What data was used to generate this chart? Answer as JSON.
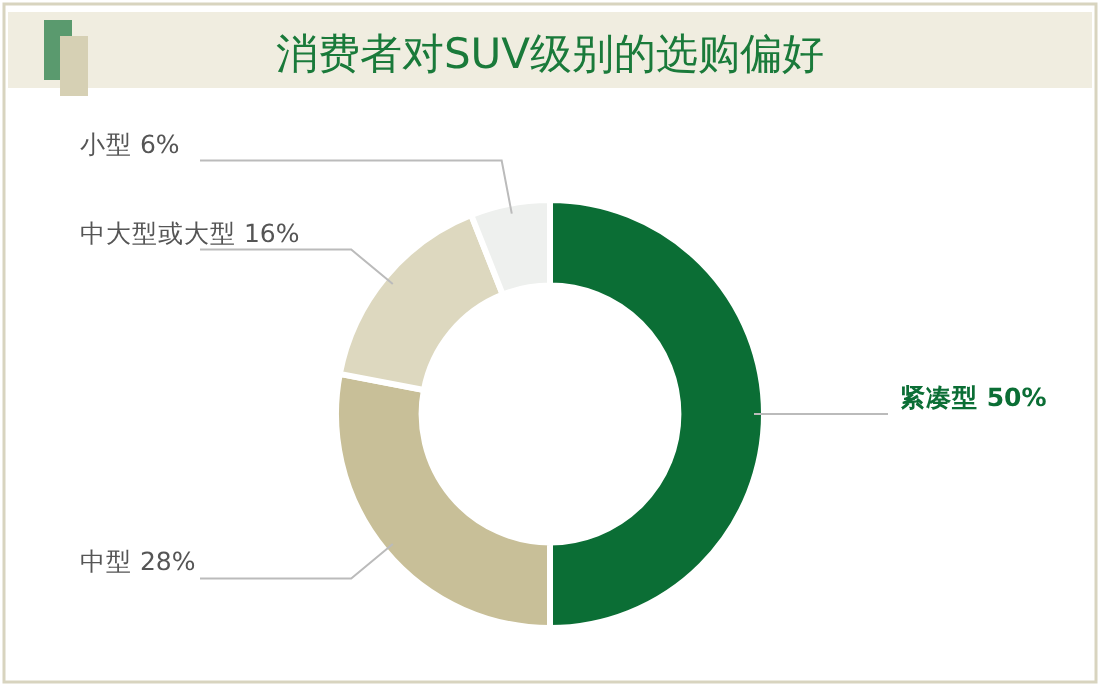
{
  "chart_data": {
    "type": "donut",
    "title": "消费者对SUV级别的选购偏好",
    "categories": [
      "紧凑型 50%",
      "中型 28%",
      "中大型或大型 16%",
      "小型 6%"
    ],
    "values": [
      50,
      28,
      16,
      6
    ],
    "colors": [
      "#0b6e35",
      "#c8bf98",
      "#ddd8bf",
      "#eef0ee"
    ]
  }
}
